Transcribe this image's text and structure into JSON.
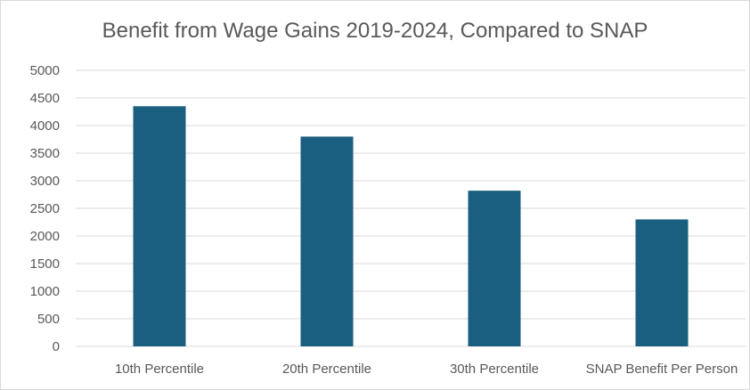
{
  "chart_data": {
    "type": "bar",
    "title": "Benefit from Wage Gains 2019-2024, Compared to SNAP",
    "categories": [
      "10th Percentile",
      "20th Percentile",
      "30th Percentile",
      "SNAP Benefit Per Person"
    ],
    "values": [
      4350,
      3800,
      2820,
      2300
    ],
    "ylim": [
      0,
      5000
    ],
    "yticks": [
      0,
      500,
      1000,
      1500,
      2000,
      2500,
      3000,
      3500,
      4000,
      4500,
      5000
    ],
    "grid": true,
    "legend": "none",
    "bar_color": "#1a5f80",
    "grid_color": "#d9d9d9",
    "text_color": "#595959"
  }
}
